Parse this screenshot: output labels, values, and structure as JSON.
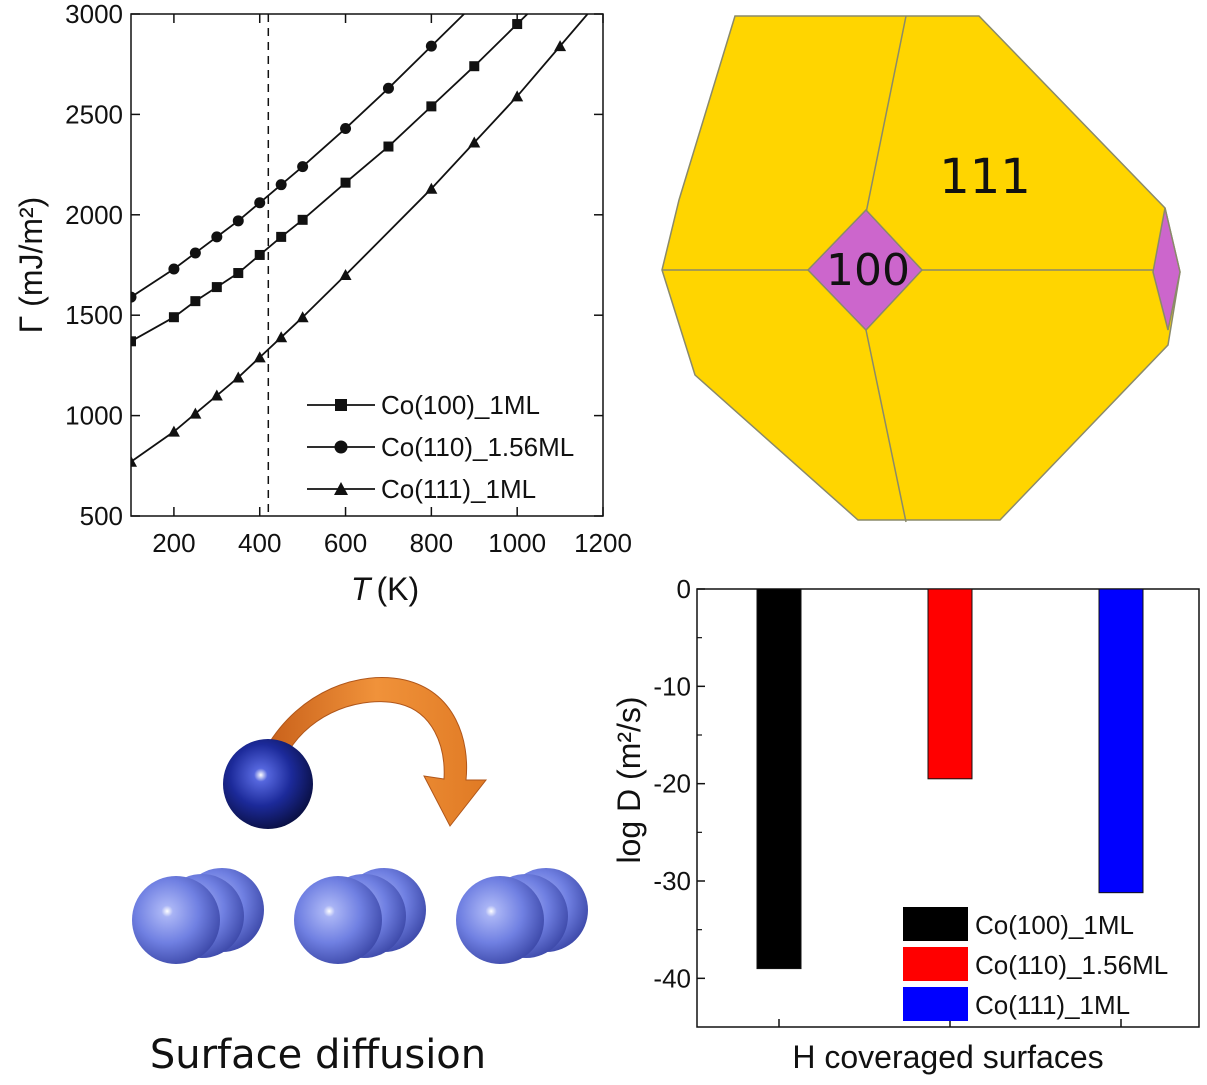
{
  "chart_data": [
    {
      "type": "line",
      "xlabel_italic": "T",
      "xlabel_unit": "(K)",
      "ylabel": "Γ (mJ/m²)",
      "xlim": [
        100,
        1200
      ],
      "ylim": [
        500,
        3000
      ],
      "xticks": [
        "200",
        "400",
        "600",
        "800",
        "1000",
        "1200"
      ],
      "yticks": [
        "500",
        "1000",
        "1500",
        "2000",
        "2500",
        "3000"
      ],
      "vline_x": 420,
      "legend_position": "bottom-right",
      "series": [
        {
          "name": "Co(100)_1ML",
          "marker": "square",
          "x": [
            100,
            200,
            250,
            300,
            350,
            400,
            450,
            500,
            600,
            700,
            800,
            900,
            1000
          ],
          "y": [
            1370,
            1490,
            1570,
            1640,
            1710,
            1800,
            1890,
            1975,
            2160,
            2340,
            2540,
            2740,
            2950
          ]
        },
        {
          "name": "Co(110)_1.56ML",
          "marker": "circle",
          "x": [
            100,
            200,
            250,
            300,
            350,
            400,
            450,
            500,
            600,
            700,
            800
          ],
          "y": [
            1590,
            1730,
            1810,
            1890,
            1970,
            2060,
            2150,
            2240,
            2430,
            2630,
            2840
          ]
        },
        {
          "name": "Co(111)_1ML",
          "marker": "triangle",
          "x": [
            100,
            200,
            250,
            300,
            350,
            400,
            450,
            500,
            600,
            800,
            900,
            1000,
            1100
          ],
          "y": [
            770,
            920,
            1010,
            1100,
            1190,
            1290,
            1390,
            1490,
            1700,
            2130,
            2360,
            2590,
            2840
          ]
        }
      ]
    },
    {
      "type": "bar",
      "ylabel": "log D (m²/s)",
      "xlabel": "H coveraged surfaces",
      "ylim": [
        -45,
        0
      ],
      "yticks": [
        "0",
        "-10",
        "-20",
        "-30",
        "-40"
      ],
      "categories": [
        "Co(100)_1ML",
        "Co(110)_1.56ML",
        "Co(111)_1ML"
      ],
      "values": [
        -39,
        -19.5,
        -31.2
      ],
      "colors": [
        "#000000",
        "#ff0000",
        "#0000ff"
      ],
      "legend_position": "bottom-right"
    }
  ],
  "crystal": {
    "facet_large": "111",
    "facet_small": "100",
    "face_color": "#ffd500",
    "small_face_color": "#cc66cc"
  },
  "diffusion": {
    "caption": "Surface diffusion",
    "adatom_color": "#1a2a99",
    "surface_atom_color": "#6f7fe0",
    "arrow_color": "#e8802a"
  }
}
